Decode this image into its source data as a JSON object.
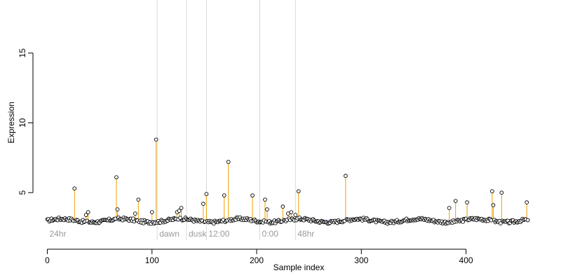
{
  "chart_data": {
    "type": "scatter",
    "title": "",
    "xlabel": "Sample index",
    "ylabel": "Expression",
    "xlim": [
      -5,
      480
    ],
    "ylim": [
      1.6,
      18.8
    ],
    "xticks": [
      0,
      100,
      200,
      300,
      400
    ],
    "yticks": [
      5,
      10,
      15
    ],
    "n_samples": 460,
    "baseline": 3.0,
    "colors": {
      "points_fill": "#ffffff",
      "points_stroke": "#000000",
      "spikes": "#f0a000",
      "region_lines": "#d8d8d8",
      "region_labels": "#9a9a9a",
      "baseline_hint": "#6f8fcf"
    },
    "regions": [
      {
        "x": 105,
        "label": "dawn"
      },
      {
        "x": 133,
        "label": "dusk"
      },
      {
        "x": 152,
        "label": "12:00"
      },
      {
        "x": 203,
        "label": "0:00"
      },
      {
        "x": 237,
        "label": "48hr"
      }
    ],
    "region_start_label": "24hr",
    "spikes": [
      {
        "x": 26,
        "y": 5.3
      },
      {
        "x": 37,
        "y": 3.4
      },
      {
        "x": 39,
        "y": 3.6
      },
      {
        "x": 66,
        "y": 6.1
      },
      {
        "x": 67,
        "y": 3.8
      },
      {
        "x": 84,
        "y": 3.5
      },
      {
        "x": 87,
        "y": 4.5
      },
      {
        "x": 100,
        "y": 3.6
      },
      {
        "x": 104,
        "y": 8.8
      },
      {
        "x": 124,
        "y": 3.6
      },
      {
        "x": 126,
        "y": 3.7
      },
      {
        "x": 128,
        "y": 3.9
      },
      {
        "x": 149,
        "y": 4.2
      },
      {
        "x": 152,
        "y": 4.9
      },
      {
        "x": 169,
        "y": 4.8
      },
      {
        "x": 173,
        "y": 7.2
      },
      {
        "x": 196,
        "y": 4.8
      },
      {
        "x": 208,
        "y": 4.5
      },
      {
        "x": 210,
        "y": 3.8
      },
      {
        "x": 225,
        "y": 4.0
      },
      {
        "x": 230,
        "y": 3.5
      },
      {
        "x": 233,
        "y": 3.6
      },
      {
        "x": 237,
        "y": 3.4
      },
      {
        "x": 240,
        "y": 5.1
      },
      {
        "x": 285,
        "y": 6.2
      },
      {
        "x": 384,
        "y": 3.9
      },
      {
        "x": 390,
        "y": 4.4
      },
      {
        "x": 401,
        "y": 4.3
      },
      {
        "x": 425,
        "y": 5.1
      },
      {
        "x": 426,
        "y": 4.1
      },
      {
        "x": 434,
        "y": 5.0
      },
      {
        "x": 458,
        "y": 4.3
      }
    ]
  }
}
